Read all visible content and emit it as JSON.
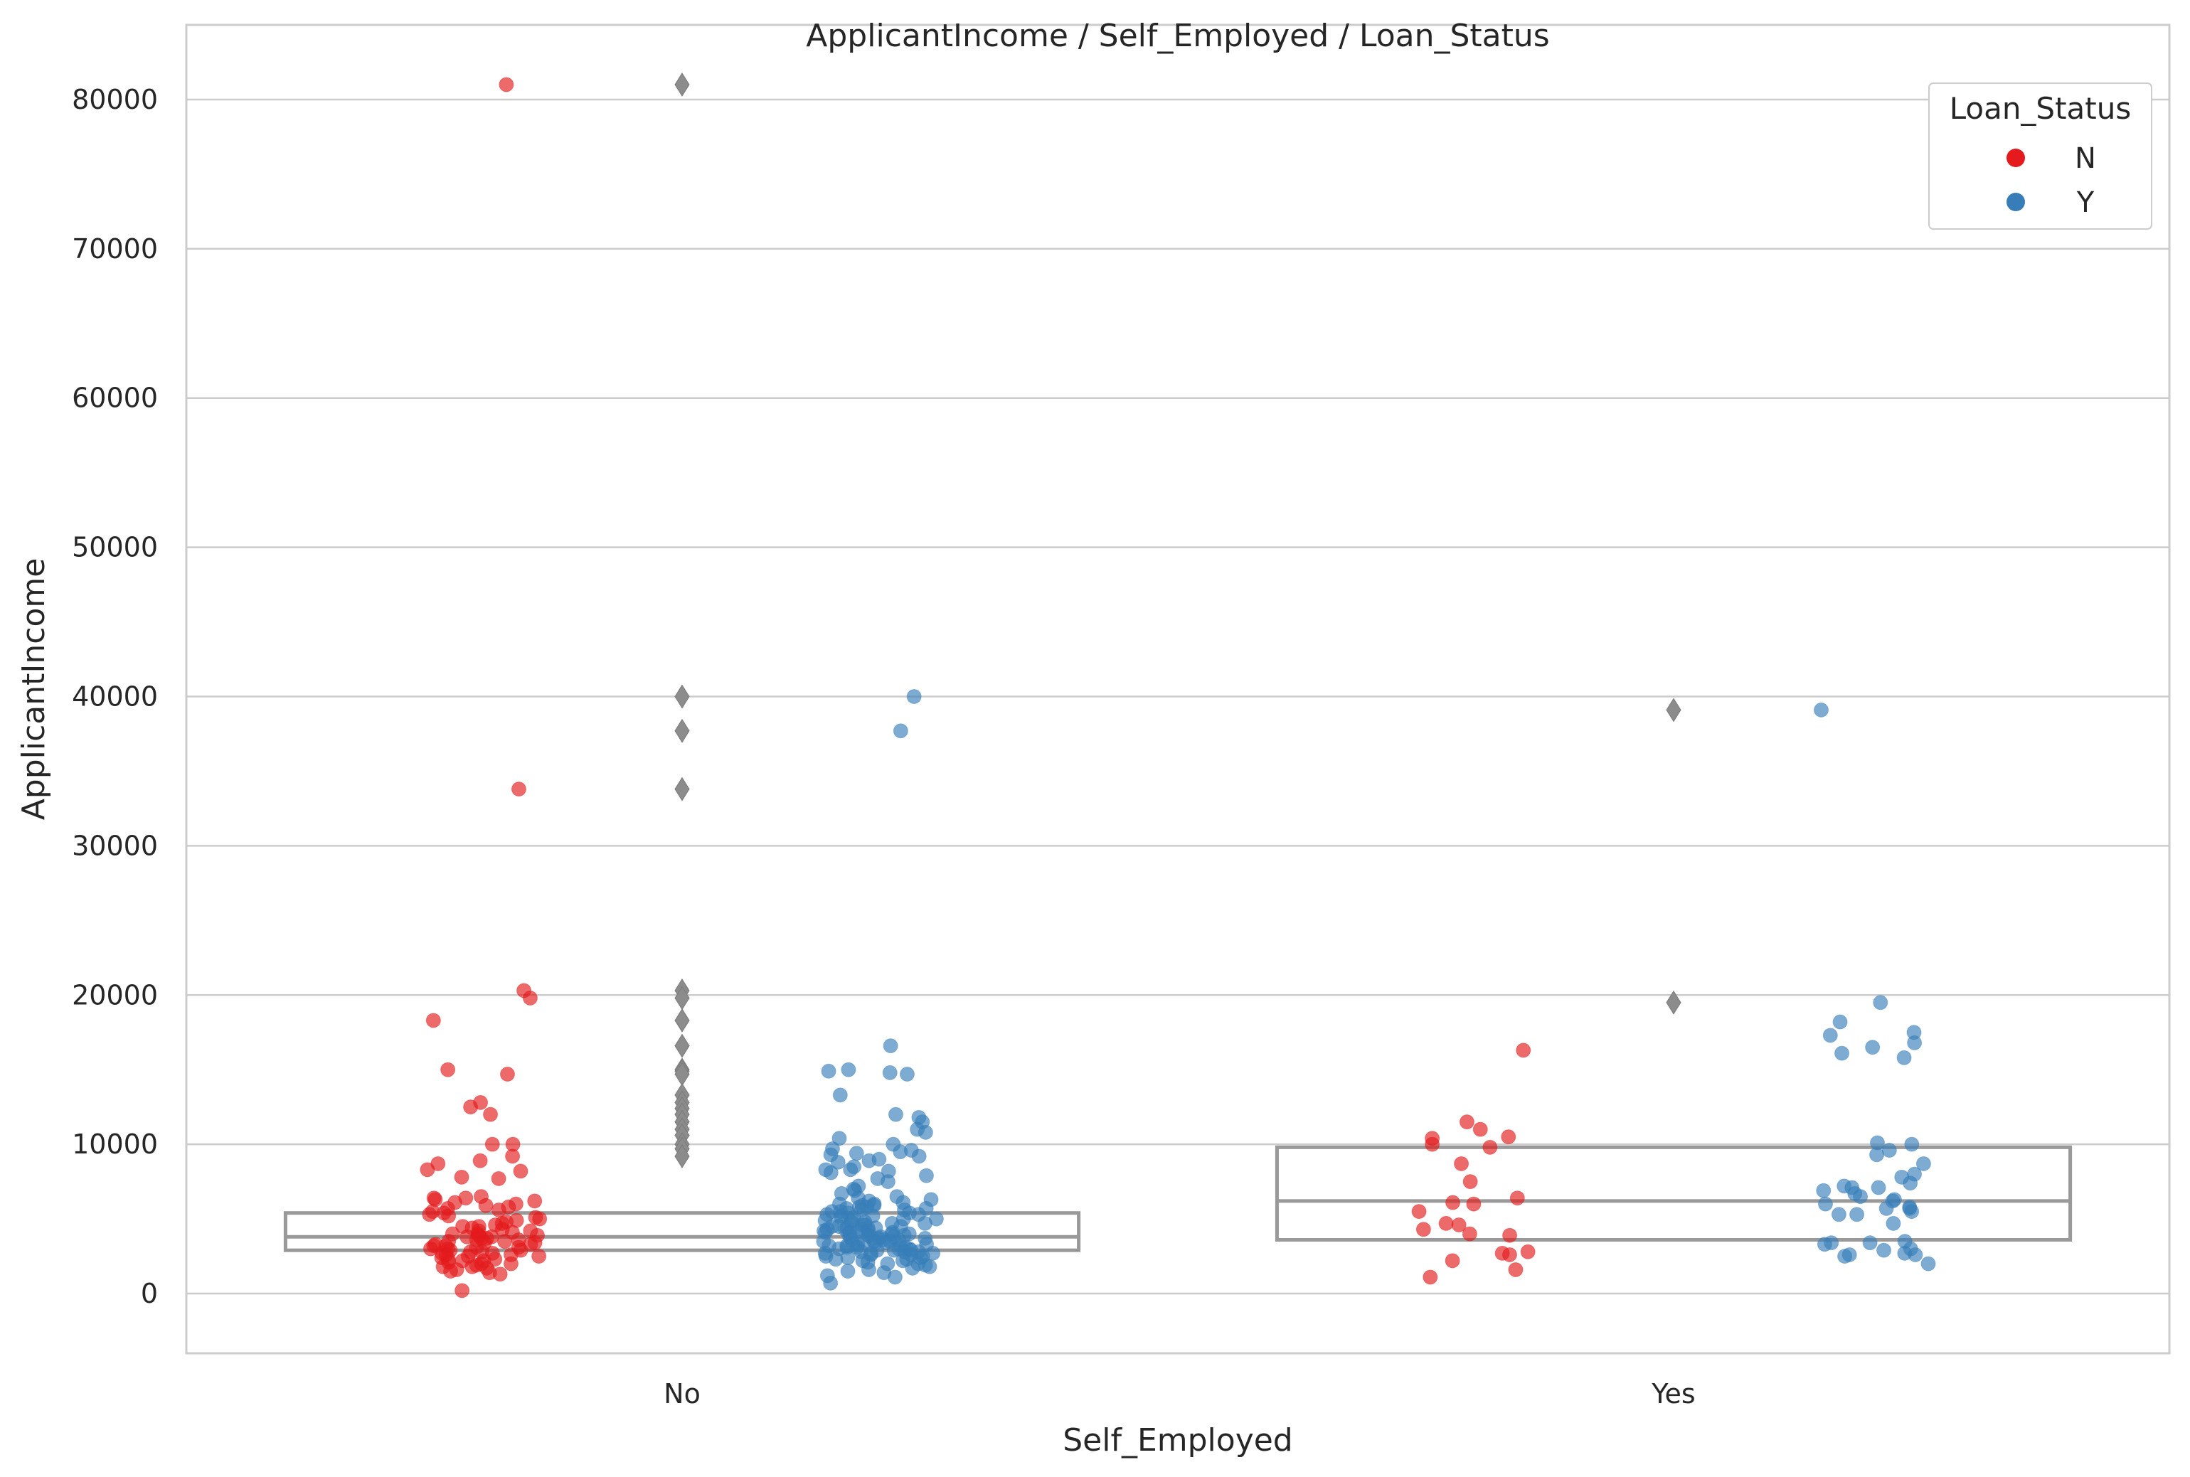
{
  "chart_data": {
    "type": "box+strip",
    "title": "ApplicantIncome / Self_Employed / Loan_Status",
    "xlabel": "Self_Employed",
    "ylabel": "ApplicantIncome",
    "categories": [
      "No",
      "Yes"
    ],
    "ylim": [
      -4000,
      85000
    ],
    "yticks": [
      0,
      10000,
      20000,
      30000,
      40000,
      50000,
      60000,
      70000,
      80000
    ],
    "grid": "horizontal",
    "legend": {
      "title": "Loan_Status",
      "placement": "top-right",
      "entries": [
        {
          "label": "N",
          "color": "#e41a1c"
        },
        {
          "label": "Y",
          "color": "#377eb8"
        }
      ]
    },
    "box_color": "#999999",
    "boxes": [
      {
        "category": "No",
        "q1": 2900,
        "median": 3800,
        "q3": 5400
      },
      {
        "category": "Yes",
        "q1": 3600,
        "median": 6200,
        "q3": 9800
      }
    ],
    "outliers": [
      {
        "category": "No",
        "values": [
          81000,
          40000,
          37700,
          33800,
          20300,
          19800,
          18300,
          16600,
          15000,
          14900,
          14700,
          13300,
          12800,
          12400,
          12000,
          11500,
          11000,
          10600,
          10000,
          9700,
          9200
        ]
      },
      {
        "category": "Yes",
        "values": [
          39100,
          19500
        ]
      }
    ],
    "series": [
      {
        "name": "N",
        "color": "#e41a1c",
        "category": "No",
        "values": [
          81000,
          33800,
          20300,
          19800,
          18300,
          15000,
          14700,
          12800,
          12500,
          12000,
          10000,
          10000,
          9200,
          8900,
          8700,
          8300,
          8200,
          7800,
          7700,
          6500,
          6400,
          6400,
          6300,
          6200,
          6100,
          6000,
          5900,
          5800,
          5700,
          5600,
          5500,
          5400,
          5300,
          5200,
          5100,
          5000,
          4900,
          4800,
          4700,
          4600,
          4500,
          4500,
          4400,
          4300,
          4200,
          4200,
          4100,
          4000,
          4000,
          3900,
          3900,
          3800,
          3800,
          3700,
          3700,
          3600,
          3600,
          3500,
          3500,
          3400,
          3400,
          3300,
          3300,
          3200,
          3200,
          3100,
          3100,
          3000,
          3000,
          2900,
          2900,
          2800,
          2800,
          2700,
          2700,
          2600,
          2600,
          2500,
          2500,
          2400,
          2300,
          2300,
          2200,
          2200,
          2100,
          2000,
          2000,
          1900,
          1800,
          1800,
          1700,
          1600,
          1500,
          1400,
          1300,
          200
        ]
      },
      {
        "name": "Y",
        "color": "#377eb8",
        "category": "No",
        "values": [
          40000,
          37700,
          16600,
          15000,
          14900,
          14800,
          14700,
          13300,
          12000,
          11800,
          11500,
          11000,
          10800,
          10400,
          10000,
          9700,
          9600,
          9500,
          9400,
          9300,
          9200,
          9000,
          8900,
          8800,
          8500,
          8300,
          8300,
          8200,
          8100,
          7900,
          7700,
          7500,
          7200,
          7000,
          6900,
          6700,
          6500,
          6400,
          6300,
          6200,
          6100,
          6000,
          6000,
          5900,
          5900,
          5800,
          5800,
          5700,
          5700,
          5600,
          5600,
          5500,
          5500,
          5400,
          5400,
          5300,
          5300,
          5200,
          5200,
          5100,
          5100,
          5000,
          5000,
          4900,
          4900,
          4800,
          4800,
          4700,
          4700,
          4600,
          4600,
          4500,
          4500,
          4500,
          4400,
          4400,
          4400,
          4300,
          4300,
          4300,
          4200,
          4200,
          4200,
          4100,
          4100,
          4100,
          4000,
          4000,
          4000,
          3900,
          3900,
          3900,
          3800,
          3800,
          3800,
          3700,
          3700,
          3700,
          3600,
          3600,
          3600,
          3500,
          3500,
          3500,
          3400,
          3400,
          3400,
          3300,
          3300,
          3300,
          3200,
          3200,
          3200,
          3100,
          3100,
          3100,
          3000,
          3000,
          3000,
          2900,
          2900,
          2900,
          2800,
          2800,
          2800,
          2700,
          2700,
          2700,
          2600,
          2600,
          2500,
          2500,
          2400,
          2400,
          2300,
          2300,
          2200,
          2200,
          2100,
          2000,
          2000,
          1900,
          1800,
          1700,
          1600,
          1500,
          1400,
          1200,
          1100,
          700
        ]
      },
      {
        "name": "N",
        "color": "#e41a1c",
        "category": "Yes",
        "values": [
          16300,
          11500,
          11000,
          10500,
          10400,
          10000,
          9800,
          8700,
          7500,
          6400,
          6100,
          6000,
          5500,
          4700,
          4600,
          4300,
          4000,
          3900,
          2800,
          2700,
          2600,
          2200,
          1600,
          1100
        ]
      },
      {
        "name": "Y",
        "color": "#377eb8",
        "category": "Yes",
        "values": [
          39100,
          19500,
          18200,
          17500,
          17300,
          16800,
          16500,
          16100,
          15800,
          10100,
          10000,
          9600,
          9300,
          8700,
          8000,
          7800,
          7400,
          7200,
          7100,
          7100,
          6900,
          6700,
          6500,
          6300,
          6200,
          6000,
          5800,
          5700,
          5700,
          5500,
          5300,
          5300,
          4700,
          3500,
          3400,
          3400,
          3300,
          3000,
          2900,
          2700,
          2600,
          2600,
          2500,
          2000
        ]
      }
    ]
  }
}
